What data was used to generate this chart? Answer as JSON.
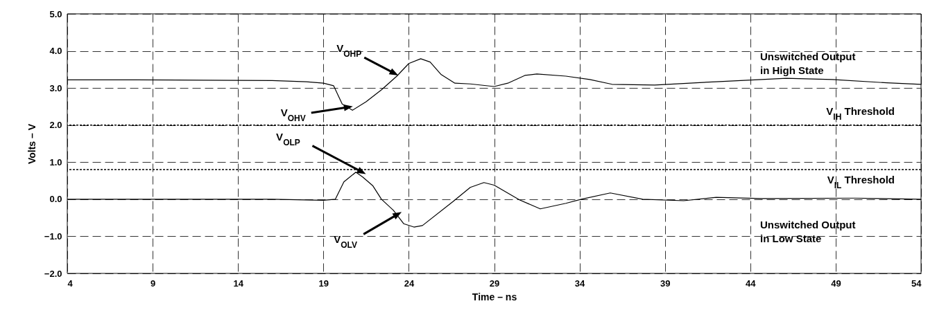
{
  "chart_data": {
    "type": "line",
    "xlabel": "Time – ns",
    "ylabel": "Volts – V",
    "xlim": [
      4,
      54
    ],
    "xticks": [
      4,
      9,
      14,
      19,
      24,
      29,
      34,
      39,
      44,
      49,
      54
    ],
    "ylim": [
      -2,
      5
    ],
    "yticks": [
      {
        "value": 5,
        "label": "5.0"
      },
      {
        "value": 4,
        "label": "4.0"
      },
      {
        "value": 3,
        "label": "3.0"
      },
      {
        "value": 2,
        "label": "2.0"
      },
      {
        "value": 1,
        "label": "1.0"
      },
      {
        "value": 0,
        "label": "0.0"
      },
      {
        "value": -1,
        "label": "−1.0"
      },
      {
        "value": -2,
        "label": "−2.0"
      }
    ],
    "grid": true,
    "marker": "none",
    "line_style": "solid",
    "series": [
      {
        "name": "Unswitched Output\nin High State",
        "color": "#000000",
        "x": [
          4,
          8,
          12,
          16,
          18,
          19,
          19.6,
          20.1,
          20.7,
          21.5,
          22.4,
          23.3,
          24,
          24.7,
          25.25,
          25.9,
          26.7,
          27.6,
          29,
          29.8,
          30.8,
          31.5,
          33.2,
          34.6,
          35.9,
          38.4,
          42,
          46.1,
          48.8,
          52,
          54
        ],
        "values": [
          3.22,
          3.22,
          3.21,
          3.2,
          3.17,
          3.13,
          3.06,
          2.57,
          2.4,
          2.63,
          2.95,
          3.32,
          3.66,
          3.79,
          3.7,
          3.36,
          3.13,
          3.11,
          3.04,
          3.13,
          3.34,
          3.38,
          3.32,
          3.23,
          3.1,
          3.08,
          3.17,
          3.26,
          3.23,
          3.14,
          3.1
        ]
      },
      {
        "name": "Unswitched Output\nin Low State",
        "color": "#000000",
        "x": [
          4,
          10,
          16,
          19,
          19.7,
          20.2,
          20.9,
          21.3,
          21.9,
          22.4,
          23.1,
          23.7,
          24.3,
          24.8,
          26.6,
          27.6,
          28.4,
          29,
          30.5,
          31.7,
          33.2,
          34.1,
          35.8,
          37.7,
          40.1,
          42,
          44.7,
          50.1,
          54
        ],
        "values": [
          0,
          0,
          0,
          -0.03,
          0,
          0.47,
          0.73,
          0.6,
          0.36,
          0,
          -0.3,
          -0.66,
          -0.75,
          -0.71,
          -0.06,
          0.32,
          0.45,
          0.38,
          -0.02,
          -0.26,
          -0.11,
          0,
          0.17,
          0,
          -0.04,
          0.05,
          0.02,
          0.03,
          0
        ]
      }
    ],
    "ref_lines": [
      {
        "axis": "y",
        "value": 2,
        "label": "V$_{IH}$ Threshold",
        "color": "#000000",
        "line_style": "dotted"
      },
      {
        "axis": "y",
        "value": 0.8,
        "label": "V$_{IL}$ Threshold",
        "color": "#000000",
        "line_style": "dotted"
      }
    ],
    "annotations": [
      {
        "text": "V$_{OHP}$",
        "x": 23.1,
        "y": 3.41
      },
      {
        "text": "V$_{OHV}$",
        "x": 20.4,
        "y": 2.48
      },
      {
        "text": "V$_{OLP}$",
        "x": 21.2,
        "y": 0.75
      },
      {
        "text": "V$_{OLV}$",
        "x": 23.3,
        "y": -0.42
      }
    ]
  }
}
